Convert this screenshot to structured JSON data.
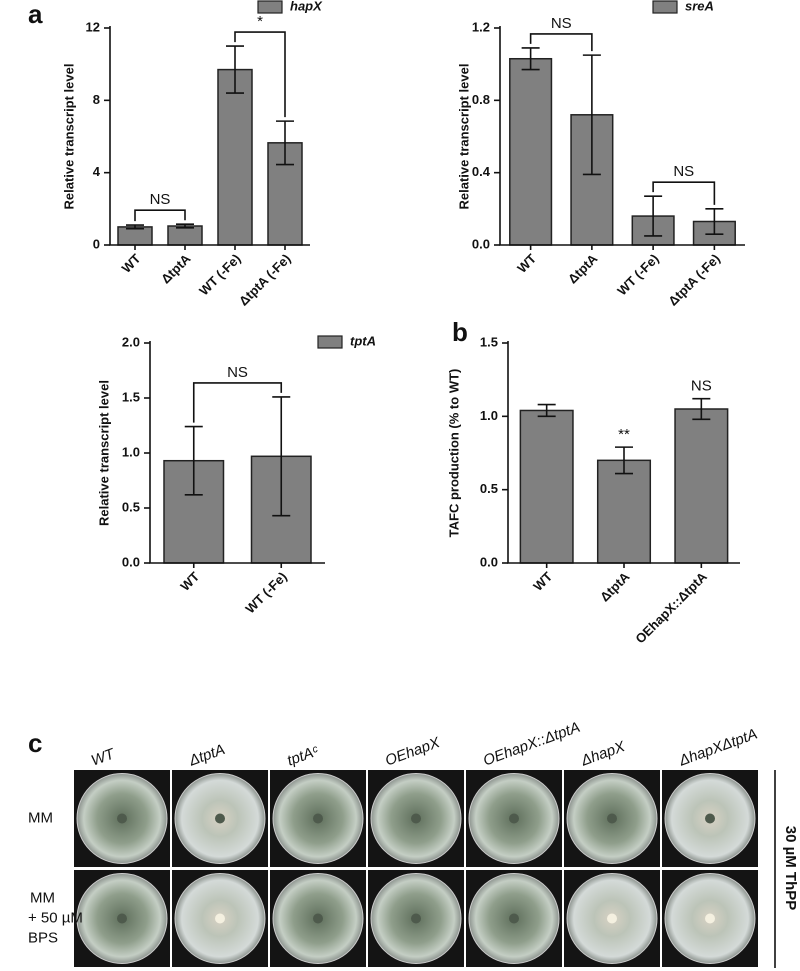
{
  "panel_labels": [
    "a",
    "b",
    "c"
  ],
  "chart_data": [
    {
      "type": "bar",
      "ylabel": "Relative transcript level",
      "categories": [
        "WT",
        "ΔtptA",
        "WT (-Fe)",
        "ΔtptA (-Fe)"
      ],
      "series": [
        {
          "name": "hapX",
          "color": "#808080",
          "values": [
            1.0,
            1.05,
            9.7,
            5.65
          ],
          "errors": [
            0.1,
            0.1,
            1.3,
            1.2
          ]
        }
      ],
      "ylim": [
        0,
        12
      ],
      "yticks": [
        0,
        4,
        8,
        12
      ],
      "annotations": [
        {
          "text": "NS",
          "categories": [
            "WT",
            "ΔtptA"
          ]
        },
        {
          "text": "*",
          "categories": [
            "WT (-Fe)",
            "ΔtptA (-Fe)"
          ]
        }
      ]
    },
    {
      "type": "bar",
      "ylabel": "Relative transcript level",
      "categories": [
        "WT",
        "ΔtptA",
        "WT (-Fe)",
        "ΔtptA (-Fe)"
      ],
      "series": [
        {
          "name": "sreA",
          "color": "#808080",
          "values": [
            1.03,
            0.72,
            0.16,
            0.13
          ],
          "errors": [
            0.06,
            0.33,
            0.11,
            0.07
          ]
        }
      ],
      "ylim": [
        0,
        1.2
      ],
      "yticks": [
        {
          "value": 0,
          "label": "0.0"
        },
        0.4,
        0.8,
        1.2
      ],
      "annotations": [
        {
          "text": "NS",
          "categories": [
            "WT",
            "ΔtptA"
          ]
        },
        {
          "text": "NS",
          "categories": [
            "WT (-Fe)",
            "ΔtptA (-Fe)"
          ]
        }
      ]
    },
    {
      "type": "bar",
      "ylabel": "Relative transcript level",
      "categories": [
        "WT",
        "WT (-Fe)"
      ],
      "series": [
        {
          "name": "tptA",
          "color": "#808080",
          "values": [
            0.93,
            0.97
          ],
          "errors": [
            0.31,
            0.54
          ]
        }
      ],
      "ylim": [
        0,
        2
      ],
      "yticks": [
        {
          "value": 0,
          "label": "0.0"
        },
        0.5,
        {
          "value": 1,
          "label": "1.0"
        },
        1.5,
        {
          "value": 2,
          "label": "2.0"
        }
      ],
      "annotations": [
        {
          "text": "NS",
          "categories": [
            "WT",
            "WT (-Fe)"
          ]
        }
      ]
    },
    {
      "type": "bar",
      "ylabel": "TAFC production (% to WT)",
      "categories": [
        "WT",
        "ΔtptA",
        "OEhapX::ΔtptA"
      ],
      "series": [
        {
          "color": "#808080",
          "values": [
            1.04,
            0.7,
            1.05
          ],
          "errors": [
            0.04,
            0.09,
            0.07
          ]
        }
      ],
      "ylim": [
        0,
        1.5
      ],
      "yticks": [
        {
          "value": 0,
          "label": "0.0"
        },
        0.5,
        {
          "value": 1,
          "label": "1.0"
        },
        1.5
      ],
      "annotations": [
        {
          "text": "**",
          "category": "ΔtptA"
        },
        {
          "text": "NS",
          "category": "OEhapX::ΔtptA"
        }
      ]
    }
  ],
  "plates": {
    "columns": [
      "WT",
      "ΔtptA",
      "tptAᶜ",
      "OEhapX",
      "OEhapX::ΔtptA",
      "ΔhapX",
      "ΔhapXΔtptA"
    ],
    "rows": [
      [
        "MM"
      ],
      [
        "MM",
        "+ 50 µM",
        "BPS"
      ]
    ],
    "side_label": "30 µM ThPP"
  }
}
